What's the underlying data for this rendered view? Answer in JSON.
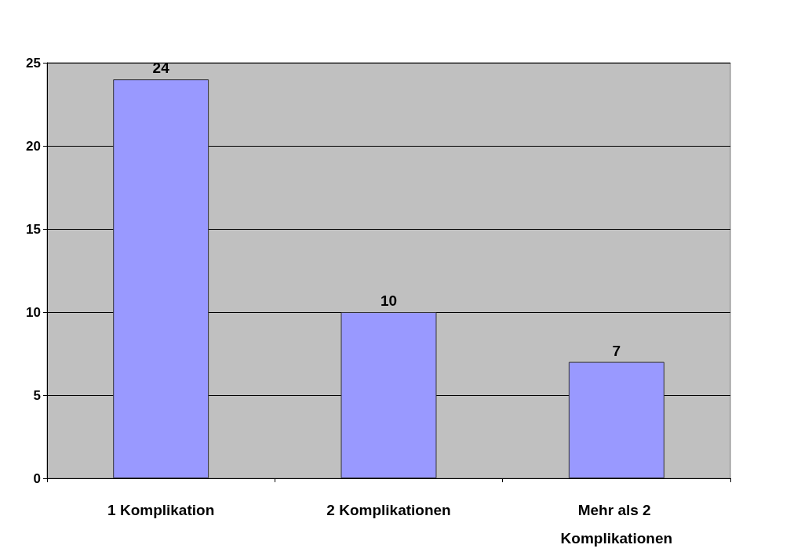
{
  "chart_data": {
    "type": "bar",
    "categories": [
      "1 Komplikation",
      "2 Komplikationen",
      "Mehr als 2 Komplikationen"
    ],
    "values": [
      24,
      10,
      7
    ],
    "color": "#9999ff",
    "ylim": [
      0,
      25
    ],
    "yticks": [
      0,
      5,
      10,
      15,
      20,
      25
    ],
    "grid": "y",
    "data_labels": true
  }
}
